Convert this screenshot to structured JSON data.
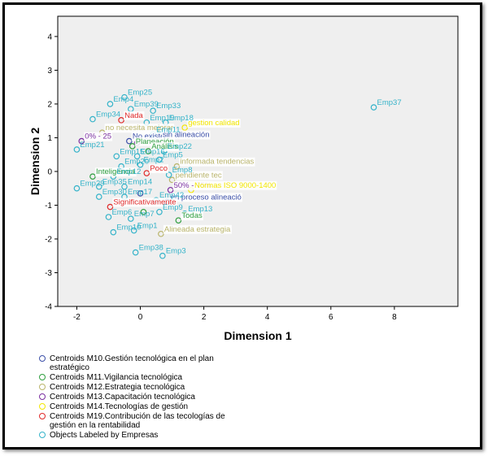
{
  "chart_data": {
    "type": "scatter",
    "xlabel": "Dimension 1",
    "ylabel": "Dimension 2",
    "xlim": [
      -2.6,
      10.0
    ],
    "ylim": [
      -4,
      4.6
    ],
    "xticks": [
      -2,
      0,
      2,
      4,
      6,
      8
    ],
    "yticks": [
      -4,
      -3,
      -2,
      -1,
      0,
      1,
      2,
      3,
      4
    ],
    "tick_labels_x": [
      "-2",
      "0",
      "2",
      "4",
      "6",
      "8"
    ],
    "tick_labels_y": [
      "-4",
      "-3",
      "-2",
      "-1",
      "0",
      "1",
      "2",
      "3",
      "4"
    ],
    "grid": false,
    "plot_background": "#efefef",
    "series": [
      {
        "name": "Centroids M10.Gestión tecnológica en el plan estratégico",
        "color": "#3b4fa8",
        "points": [
          {
            "x": -0.35,
            "y": 0.9,
            "label": "No existe"
          },
          {
            "x": 0.6,
            "y": 0.95,
            "label": "sin alineación"
          },
          {
            "x": 0.85,
            "y": -0.9,
            "label": "en proceso alineació"
          },
          {
            "x": 0.0,
            "y": -0.65,
            "label": ""
          }
        ]
      },
      {
        "name": "Centroids M11.Vigilancia tecnológica",
        "color": "#2e9e3e",
        "points": [
          {
            "x": -0.25,
            "y": 0.75,
            "label": "Planeación"
          },
          {
            "x": -1.5,
            "y": -0.15,
            "label": "Inteligencia"
          },
          {
            "x": 0.25,
            "y": 0.6,
            "label": "Análisis"
          },
          {
            "x": 1.2,
            "y": -1.45,
            "label": "Todas"
          },
          {
            "x": 0.1,
            "y": -1.2,
            "label": ""
          }
        ]
      },
      {
        "name": "Centroids M12.Estrategia tecnológica",
        "color": "#b9b46a",
        "points": [
          {
            "x": -1.2,
            "y": 1.15,
            "label": "no necesita mejorar"
          },
          {
            "x": 1.15,
            "y": 0.15,
            "label": "informada tendencias"
          },
          {
            "x": 1.0,
            "y": -0.25,
            "label": "pendiente tec"
          },
          {
            "x": 0.65,
            "y": -1.85,
            "label": "Alineada estrategia"
          }
        ]
      },
      {
        "name": "Centroids M13.Capacitación tecnológica",
        "color": "#7a2ea0",
        "points": [
          {
            "x": -1.85,
            "y": 0.9,
            "label": "0% - 25"
          },
          {
            "x": 0.95,
            "y": -0.55,
            "label": "50% - 75%"
          },
          {
            "x": -0.1,
            "y": 0.85,
            "label": ""
          }
        ]
      },
      {
        "name": "Centroids M14.Tecnologías de gestión",
        "color": "#f2e600",
        "points": [
          {
            "x": 1.4,
            "y": 1.3,
            "label": "gestion calidad"
          },
          {
            "x": 1.6,
            "y": -0.55,
            "label": "Normas ISO 9000-1400"
          }
        ]
      },
      {
        "name": "Centroids M19.Contribución de las tecologías de gestión en la rentabilidad",
        "color": "#e02828",
        "points": [
          {
            "x": -0.6,
            "y": 1.52,
            "label": "Nada"
          },
          {
            "x": 0.2,
            "y": -0.05,
            "label": "Poco"
          },
          {
            "x": -0.95,
            "y": -1.05,
            "label": "Significativamente"
          }
        ]
      },
      {
        "name": "Objects Labeled by Empresas",
        "color": "#34b3c9",
        "points": [
          {
            "x": -0.5,
            "y": 2.2,
            "label": "Emp25"
          },
          {
            "x": -0.95,
            "y": 2.0,
            "label": "Emp4"
          },
          {
            "x": -0.3,
            "y": 1.85,
            "label": "Emp39"
          },
          {
            "x": 0.4,
            "y": 1.8,
            "label": "Emp33"
          },
          {
            "x": -1.5,
            "y": 1.55,
            "label": "Emp34"
          },
          {
            "x": 0.2,
            "y": 1.45,
            "label": "Emp19"
          },
          {
            "x": 0.8,
            "y": 1.45,
            "label": "Emp18"
          },
          {
            "x": 0.4,
            "y": 1.1,
            "label": "Emp11"
          },
          {
            "x": -2.0,
            "y": 0.65,
            "label": "Emp21"
          },
          {
            "x": 0.75,
            "y": 0.6,
            "label": "Emp22"
          },
          {
            "x": -0.75,
            "y": 0.45,
            "label": "Emp15"
          },
          {
            "x": -0.1,
            "y": 0.45,
            "label": "Emp16"
          },
          {
            "x": -0.6,
            "y": 0.15,
            "label": "Emp20"
          },
          {
            "x": 0.0,
            "y": 0.2,
            "label": "Emp2"
          },
          {
            "x": 0.6,
            "y": 0.35,
            "label": "Emp5"
          },
          {
            "x": -0.85,
            "y": -0.15,
            "label": "Emp12"
          },
          {
            "x": 0.9,
            "y": -0.1,
            "label": "Emp8"
          },
          {
            "x": -2.0,
            "y": -0.5,
            "label": "Emp29"
          },
          {
            "x": -1.3,
            "y": -0.45,
            "label": "Emp35"
          },
          {
            "x": -0.5,
            "y": -0.45,
            "label": "Emp14"
          },
          {
            "x": -1.3,
            "y": -0.75,
            "label": "Emp30"
          },
          {
            "x": -0.5,
            "y": -0.75,
            "label": "Emp17"
          },
          {
            "x": 0.5,
            "y": -0.85,
            "label": "Emp42"
          },
          {
            "x": -1.0,
            "y": -1.35,
            "label": "Emp6"
          },
          {
            "x": -0.3,
            "y": -1.4,
            "label": "Emp7"
          },
          {
            "x": 0.6,
            "y": -1.2,
            "label": "Emp9"
          },
          {
            "x": 1.4,
            "y": -1.25,
            "label": "Emp13"
          },
          {
            "x": -0.85,
            "y": -1.8,
            "label": "Emp10"
          },
          {
            "x": -0.2,
            "y": -1.75,
            "label": "Emp1"
          },
          {
            "x": -0.15,
            "y": -2.4,
            "label": "Emp38"
          },
          {
            "x": 0.7,
            "y": -2.5,
            "label": "Emp3"
          },
          {
            "x": 7.35,
            "y": 1.9,
            "label": "Emp37"
          }
        ]
      }
    ]
  },
  "legend": {
    "items": [
      {
        "color": "#3b4fa8",
        "label": "Centroids M10.Gestión tecnológica en el plan estratégico"
      },
      {
        "color": "#2e9e3e",
        "label": "Centroids M11.Vigilancia tecnológica"
      },
      {
        "color": "#b9b46a",
        "label": "Centroids M12.Estrategia tecnológica"
      },
      {
        "color": "#7a2ea0",
        "label": "Centroids M13.Capacitación tecnológica"
      },
      {
        "color": "#f2e600",
        "label": "Centroids M14.Tecnologías de gestión"
      },
      {
        "color": "#e02828",
        "label": "Centroids M19.Contribución de las tecologías de gestión en la rentabilidad"
      },
      {
        "color": "#34b3c9",
        "label": "Objects Labeled by Empresas"
      }
    ]
  }
}
